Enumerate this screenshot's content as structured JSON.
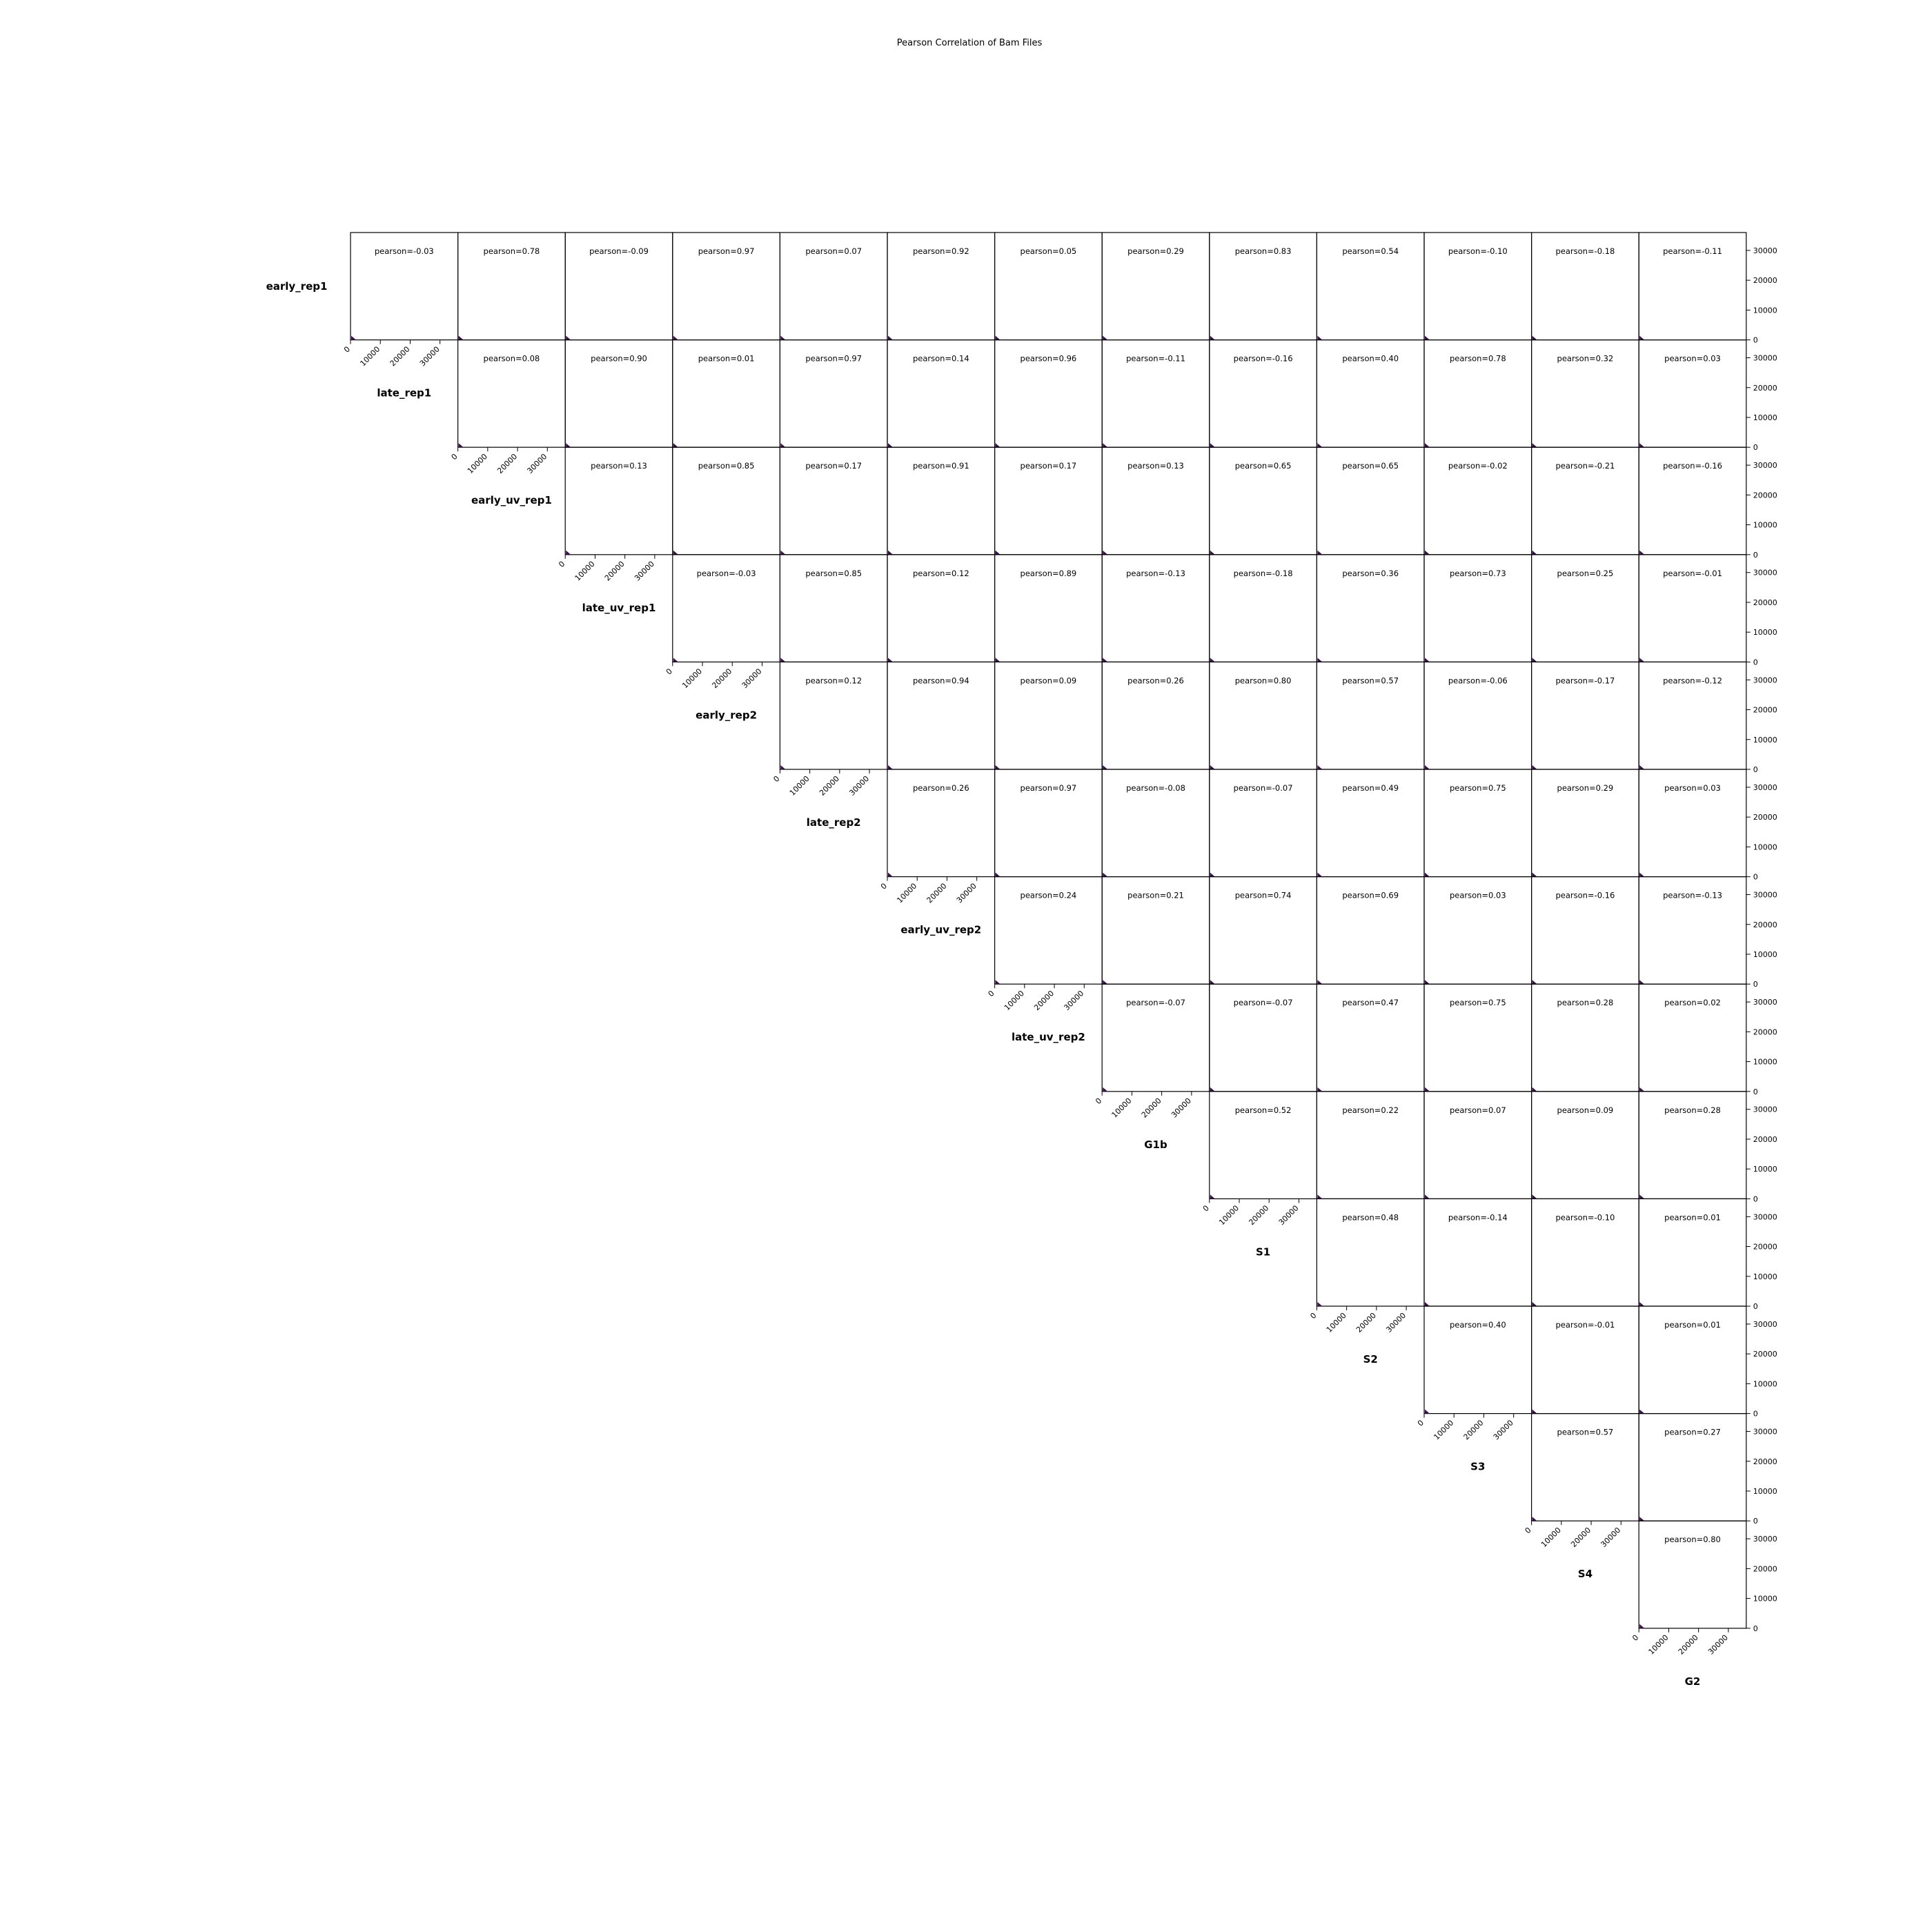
{
  "chart_data": {
    "type": "scatter",
    "title": "Pearson Correlation of Bam Files",
    "samples": [
      "early_rep1",
      "late_rep1",
      "early_uv_rep1",
      "late_uv_rep1",
      "early_rep2",
      "late_rep2",
      "early_uv_rep2",
      "late_uv_rep2",
      "G1b",
      "S1",
      "S2",
      "S3",
      "S4",
      "G2"
    ],
    "correlation_label_prefix": "pearson=",
    "correlations": [
      [
        "-0.03",
        "0.78",
        "-0.09",
        "0.97",
        "0.07",
        "0.92",
        "0.05",
        "0.29",
        "0.83",
        "0.54",
        "-0.10",
        "-0.18",
        "-0.11"
      ],
      [
        "0.08",
        "0.90",
        "0.01",
        "0.97",
        "0.14",
        "0.96",
        "-0.11",
        "-0.16",
        "0.40",
        "0.78",
        "0.32",
        "0.03"
      ],
      [
        "0.13",
        "0.85",
        "0.17",
        "0.91",
        "0.17",
        "0.13",
        "0.65",
        "0.65",
        "-0.02",
        "-0.21",
        "-0.16"
      ],
      [
        "-0.03",
        "0.85",
        "0.12",
        "0.89",
        "-0.13",
        "-0.18",
        "0.36",
        "0.73",
        "0.25",
        "-0.01"
      ],
      [
        "0.12",
        "0.94",
        "0.09",
        "0.26",
        "0.80",
        "0.57",
        "-0.06",
        "-0.17",
        "-0.12"
      ],
      [
        "0.26",
        "0.97",
        "-0.08",
        "-0.07",
        "0.49",
        "0.75",
        "0.29",
        "0.03"
      ],
      [
        "0.24",
        "0.21",
        "0.74",
        "0.69",
        "0.03",
        "-0.16",
        "-0.13"
      ],
      [
        "-0.07",
        "-0.07",
        "0.47",
        "0.75",
        "0.28",
        "0.02"
      ],
      [
        "0.52",
        "0.22",
        "0.07",
        "0.09",
        "0.28"
      ],
      [
        "0.48",
        "-0.14",
        "-0.10",
        "0.01"
      ],
      [
        "0.40",
        "-0.01",
        "0.01"
      ],
      [
        "0.57",
        "0.27"
      ],
      [
        "0.80"
      ]
    ],
    "x_ticks": [
      "0",
      "10000",
      "20000",
      "30000"
    ],
    "y_ticks": [
      "0",
      "10000",
      "20000",
      "30000"
    ],
    "xlim": [
      0,
      36000
    ],
    "ylim": [
      0,
      36000
    ],
    "point_color": "#3b0f4f"
  }
}
